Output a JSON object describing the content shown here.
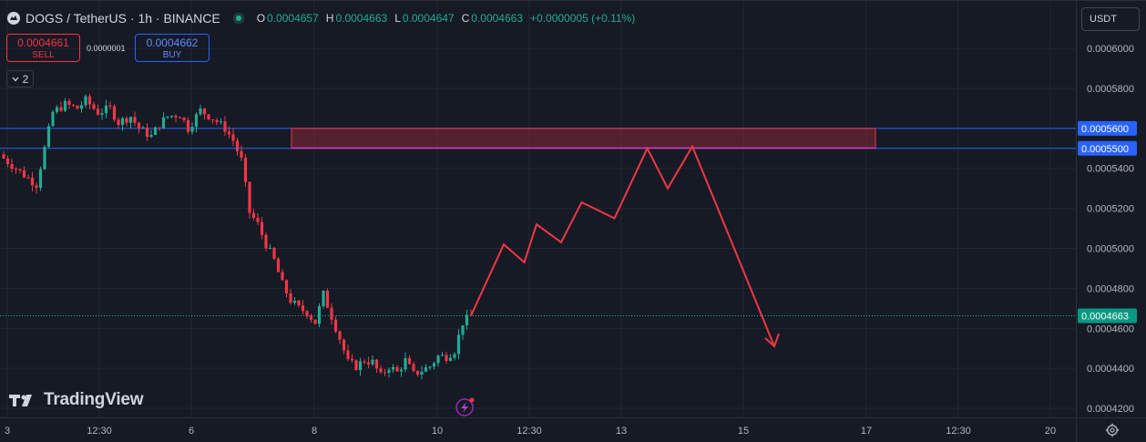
{
  "header": {
    "title": "DOGS / TetherUS · 1h · BINANCE",
    "ohlc": {
      "o_label": "O",
      "o": "0.0004657",
      "h_label": "H",
      "h": "0.0004663",
      "l_label": "L",
      "l": "0.0004647",
      "c_label": "C",
      "c": "0.0004663",
      "change": "+0.0000005 (+0.11%)"
    }
  },
  "trade": {
    "sell_price": "0.0004661",
    "sell_label": "SELL",
    "spread": "0.0000001",
    "buy_price": "0.0004662",
    "buy_label": "BUY"
  },
  "indicators_collapsed_count": "2",
  "currency_button": "USDT",
  "branding": "TradingView",
  "colors": {
    "background": "#161a25",
    "up": "#22ab94",
    "down": "#f23645",
    "zone_line": "#2962ff",
    "projection": "#f23645"
  },
  "chart_data": {
    "type": "candlestick",
    "symbol": "DOGS / TetherUS",
    "interval": "1h",
    "exchange": "BINANCE",
    "y_axis": {
      "ticks": [
        "0.0006000",
        "0.0005800",
        "0.0005600",
        "0.0005400",
        "0.0005200",
        "0.0005000",
        "0.0004800",
        "0.0004600",
        "0.0004400",
        "0.0004200"
      ],
      "range": [
        0.000415,
        0.000621
      ]
    },
    "x_axis": {
      "ticks": [
        "3",
        "12:30",
        "6",
        "8",
        "10",
        "12:30",
        "13",
        "15",
        "17",
        "12:30",
        "20"
      ]
    },
    "price_labels": {
      "zone_top": "0.0005600",
      "zone_bottom": "0.0005500",
      "last": "0.0004663"
    },
    "zone": {
      "top": 0.00056,
      "bottom": 0.00055
    },
    "last_price": 0.0004663,
    "price_path": [
      [
        0,
        0.000545
      ],
      [
        3,
        0.00054
      ],
      [
        6,
        0.000535
      ],
      [
        8,
        0.000532
      ],
      [
        10,
        0.00055
      ],
      [
        12,
        0.000568
      ],
      [
        15,
        0.000572
      ],
      [
        18,
        0.00057
      ],
      [
        20,
        0.000574
      ],
      [
        23,
        0.000568
      ],
      [
        26,
        0.00057
      ],
      [
        28,
        0.000563
      ],
      [
        31,
        0.000566
      ],
      [
        33,
        0.00056
      ],
      [
        36,
        0.000556
      ],
      [
        38,
        0.000562
      ],
      [
        40,
        0.000566
      ],
      [
        43,
        0.000567
      ],
      [
        45,
        0.00056
      ],
      [
        48,
        0.000569
      ],
      [
        51,
        0.000565
      ],
      [
        54,
        0.00056
      ],
      [
        56,
        0.000554
      ],
      [
        58,
        0.000544
      ],
      [
        60,
        0.000518
      ],
      [
        62,
        0.000512
      ],
      [
        64,
        0.000502
      ],
      [
        66,
        0.000494
      ],
      [
        68,
        0.000482
      ],
      [
        70,
        0.000474
      ],
      [
        72,
        0.00047
      ],
      [
        74,
        0.000468
      ],
      [
        76,
        0.000463
      ],
      [
        78,
        0.000477
      ],
      [
        80,
        0.000466
      ],
      [
        82,
        0.000455
      ],
      [
        84,
        0.000443
      ],
      [
        86,
        0.000441
      ],
      [
        88,
        0.000444
      ],
      [
        90,
        0.000443
      ],
      [
        92,
        0.000436
      ],
      [
        94,
        0.000441
      ],
      [
        96,
        0.000438
      ],
      [
        98,
        0.000444
      ],
      [
        100,
        0.000437
      ],
      [
        102,
        0.000439
      ],
      [
        104,
        0.000441
      ],
      [
        106,
        0.000446
      ],
      [
        108,
        0.000446
      ],
      [
        110,
        0.000449
      ],
      [
        112,
        0.000463
      ],
      [
        114,
        0.000466
      ]
    ],
    "projection_path": [
      [
        114,
        0.0004663
      ],
      [
        122,
        0.000502
      ],
      [
        127,
        0.000493
      ],
      [
        130,
        0.000512
      ],
      [
        136,
        0.000503
      ],
      [
        141,
        0.000523
      ],
      [
        149,
        0.000515
      ],
      [
        157,
        0.00055
      ],
      [
        162,
        0.00053
      ],
      [
        168,
        0.000551
      ],
      [
        188,
        0.000451
      ]
    ]
  }
}
